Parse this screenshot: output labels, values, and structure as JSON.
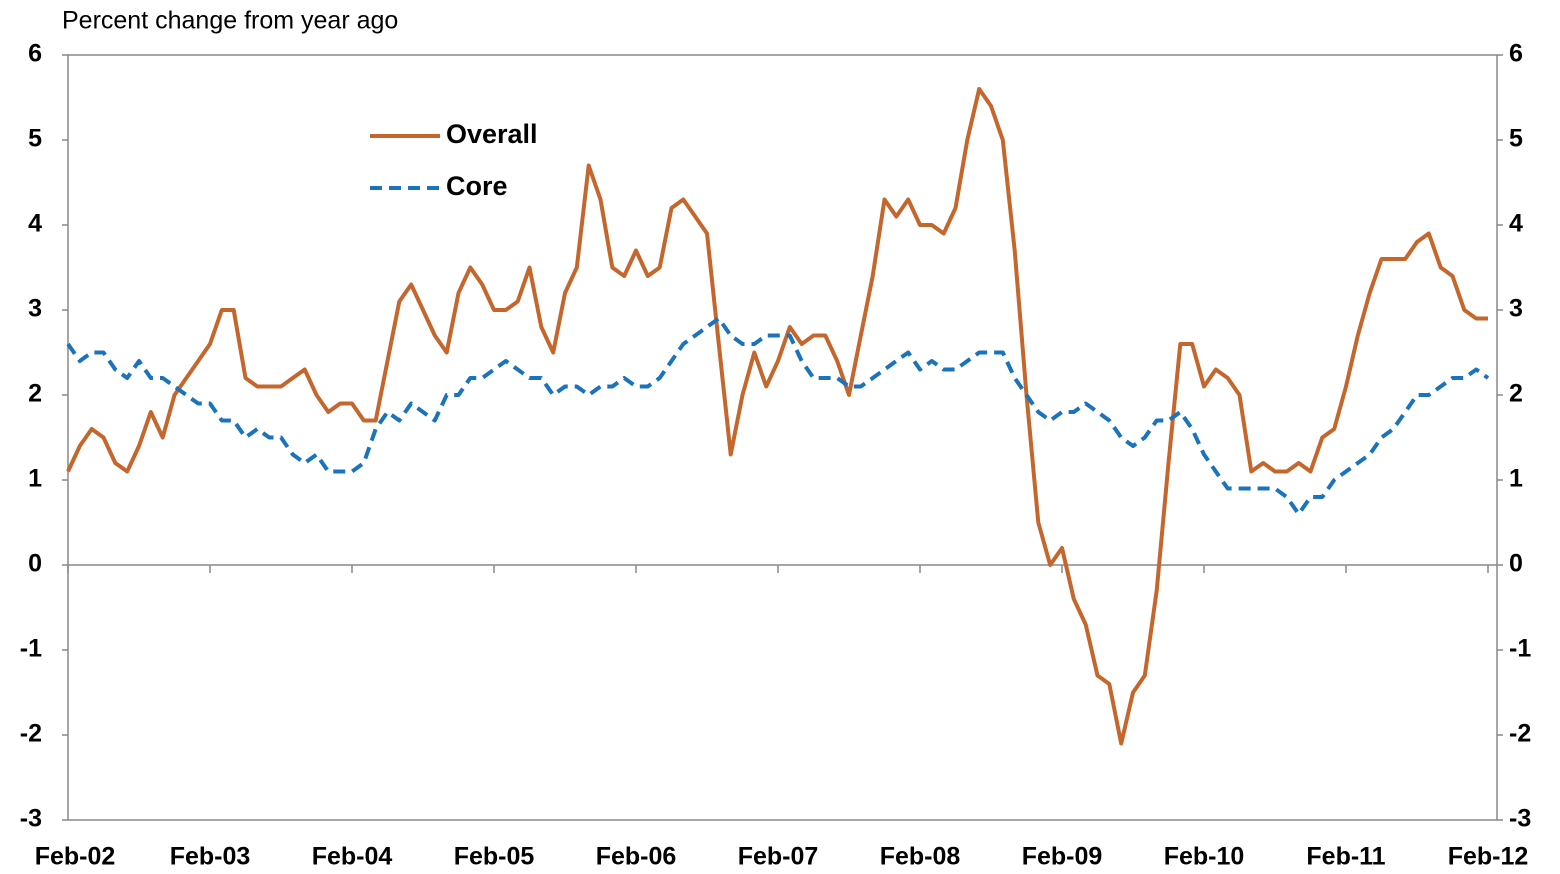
{
  "chart_data": {
    "type": "line",
    "y_label": "Percent change from year ago",
    "categories": [
      "Feb-02",
      null,
      null,
      null,
      null,
      null,
      null,
      null,
      null,
      null,
      null,
      null,
      "Feb-03",
      null,
      null,
      null,
      null,
      null,
      null,
      null,
      null,
      null,
      null,
      null,
      "Feb-04",
      null,
      null,
      null,
      null,
      null,
      null,
      null,
      null,
      null,
      null,
      null,
      "Feb-05",
      null,
      null,
      null,
      null,
      null,
      null,
      null,
      null,
      null,
      null,
      null,
      "Feb-06",
      null,
      null,
      null,
      null,
      null,
      null,
      null,
      null,
      null,
      null,
      null,
      "Feb-07",
      null,
      null,
      null,
      null,
      null,
      null,
      null,
      null,
      null,
      null,
      null,
      "Feb-08",
      null,
      null,
      null,
      null,
      null,
      null,
      null,
      null,
      null,
      null,
      null,
      "Feb-09",
      null,
      null,
      null,
      null,
      null,
      null,
      null,
      null,
      null,
      null,
      null,
      "Feb-10",
      null,
      null,
      null,
      null,
      null,
      null,
      null,
      null,
      null,
      null,
      null,
      "Feb-11",
      null,
      null,
      null,
      null,
      null,
      null,
      null,
      null,
      null,
      null,
      null,
      "Feb-12"
    ],
    "series": [
      {
        "name": "Overall",
        "color": "#c5662d",
        "dashed": false,
        "values": [
          1.1,
          1.4,
          1.6,
          1.5,
          1.2,
          1.1,
          1.4,
          1.8,
          1.5,
          2.0,
          2.2,
          2.4,
          2.6,
          3.0,
          3.0,
          2.2,
          2.1,
          2.1,
          2.1,
          2.2,
          2.3,
          2.0,
          1.8,
          1.9,
          1.9,
          1.7,
          1.7,
          2.4,
          3.1,
          3.3,
          3.0,
          2.7,
          2.5,
          3.2,
          3.5,
          3.3,
          3.0,
          3.0,
          3.1,
          3.5,
          2.8,
          2.5,
          3.2,
          3.5,
          4.7,
          4.3,
          3.5,
          3.4,
          3.7,
          3.4,
          3.5,
          4.2,
          4.3,
          4.1,
          3.9,
          2.6,
          1.3,
          2.0,
          2.5,
          2.1,
          2.4,
          2.8,
          2.6,
          2.7,
          2.7,
          2.4,
          2.0,
          2.7,
          3.4,
          4.3,
          4.1,
          4.3,
          4.0,
          4.0,
          3.9,
          4.2,
          5.0,
          5.6,
          5.4,
          5.0,
          3.7,
          2.0,
          0.5,
          0.0,
          0.2,
          -0.4,
          -0.7,
          -1.3,
          -1.4,
          -2.1,
          -1.5,
          -1.3,
          -0.3,
          1.2,
          2.6,
          2.6,
          2.1,
          2.3,
          2.2,
          2.0,
          1.1,
          1.2,
          1.1,
          1.1,
          1.2,
          1.1,
          1.5,
          1.6,
          2.1,
          2.7,
          3.2,
          3.6,
          3.6,
          3.6,
          3.8,
          3.9,
          3.5,
          3.4,
          3.0,
          2.9,
          2.9
        ]
      },
      {
        "name": "Core",
        "color": "#1a73bb",
        "dashed": true,
        "values": [
          2.6,
          2.4,
          2.5,
          2.5,
          2.3,
          2.2,
          2.4,
          2.2,
          2.2,
          2.1,
          2.0,
          1.9,
          1.9,
          1.7,
          1.7,
          1.5,
          1.6,
          1.5,
          1.5,
          1.3,
          1.2,
          1.3,
          1.1,
          1.1,
          1.1,
          1.2,
          1.6,
          1.8,
          1.7,
          1.9,
          1.8,
          1.7,
          2.0,
          2.0,
          2.2,
          2.2,
          2.3,
          2.4,
          2.3,
          2.2,
          2.2,
          2.0,
          2.1,
          2.1,
          2.0,
          2.1,
          2.1,
          2.2,
          2.1,
          2.1,
          2.2,
          2.4,
          2.6,
          2.7,
          2.8,
          2.9,
          2.7,
          2.6,
          2.6,
          2.7,
          2.7,
          2.7,
          2.4,
          2.2,
          2.2,
          2.2,
          2.1,
          2.1,
          2.2,
          2.3,
          2.4,
          2.5,
          2.3,
          2.4,
          2.3,
          2.3,
          2.4,
          2.5,
          2.5,
          2.5,
          2.2,
          2.0,
          1.8,
          1.7,
          1.8,
          1.8,
          1.9,
          1.8,
          1.7,
          1.5,
          1.4,
          1.5,
          1.7,
          1.7,
          1.8,
          1.6,
          1.3,
          1.1,
          0.9,
          0.9,
          0.9,
          0.9,
          0.9,
          0.8,
          0.6,
          0.8,
          0.8,
          1.0,
          1.1,
          1.2,
          1.3,
          1.5,
          1.6,
          1.8,
          2.0,
          2.0,
          2.1,
          2.2,
          2.2,
          2.3,
          2.2
        ]
      }
    ],
    "ylim": [
      -3,
      6
    ],
    "yticks": [
      -3,
      -2,
      -1,
      0,
      1,
      2,
      3,
      4,
      5,
      6
    ],
    "right_axis_labels": true,
    "grid": false
  }
}
